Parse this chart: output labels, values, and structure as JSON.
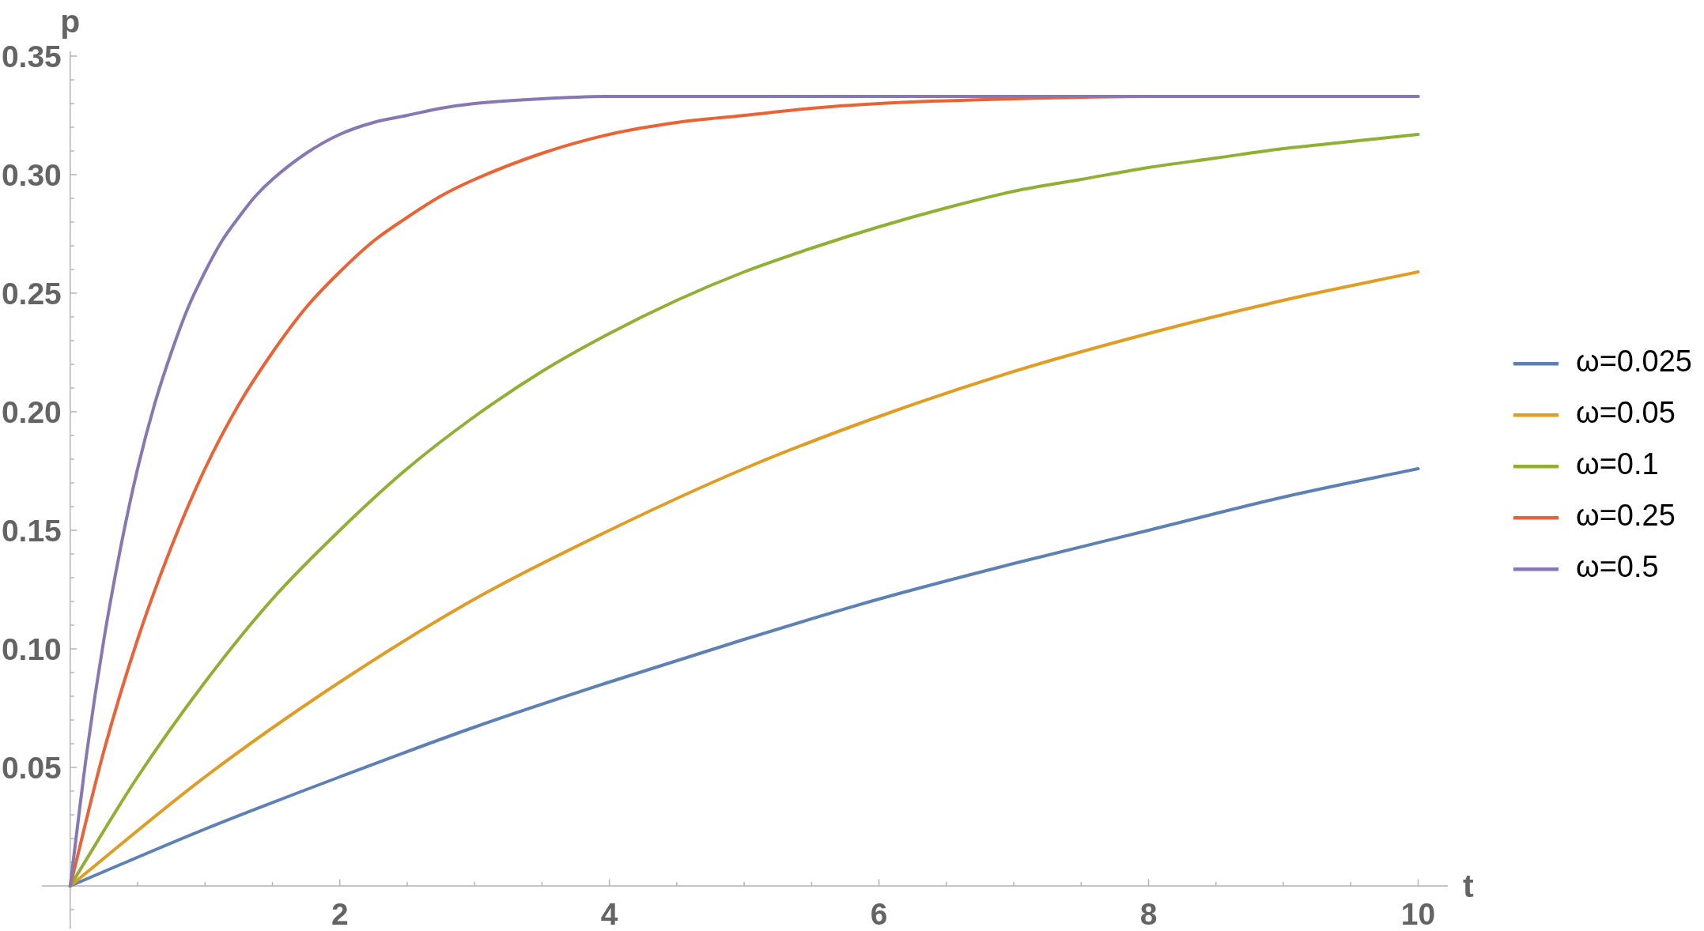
{
  "chart_data": {
    "type": "line",
    "xlabel": "t",
    "ylabel": "p",
    "series": [
      {
        "name": "ω=0.025",
        "color": "#5e81b5",
        "x": [
          0,
          1,
          2,
          3,
          4,
          5,
          6,
          7,
          8,
          9,
          10
        ],
        "values": [
          0,
          0.024,
          0.046,
          0.067,
          0.086,
          0.104,
          0.121,
          0.136,
          0.15,
          0.164,
          0.176
        ]
      },
      {
        "name": "ω=0.05",
        "color": "#e19c24",
        "x": [
          0,
          1,
          2,
          3,
          4,
          5,
          6,
          7,
          8,
          9,
          10
        ],
        "values": [
          0,
          0.046,
          0.086,
          0.121,
          0.15,
          0.176,
          0.198,
          0.217,
          0.233,
          0.247,
          0.259
        ]
      },
      {
        "name": "ω=0.1",
        "color": "#8fb032",
        "x": [
          0,
          0.5,
          1,
          1.5,
          2,
          2.5,
          3,
          3.5,
          4,
          4.5,
          5,
          5.5,
          6,
          6.5,
          7,
          7.5,
          8,
          8.5,
          9,
          9.5,
          10
        ],
        "values": [
          0,
          0.046,
          0.086,
          0.121,
          0.15,
          0.176,
          0.198,
          0.217,
          0.233,
          0.247,
          0.259,
          0.269,
          0.278,
          0.286,
          0.293,
          0.298,
          0.303,
          0.307,
          0.311,
          0.314,
          0.317
        ]
      },
      {
        "name": "ω=0.25",
        "color": "#eb6235",
        "x": [
          0,
          0.25,
          0.5,
          0.75,
          1,
          1.25,
          1.5,
          1.75,
          2,
          2.25,
          2.5,
          2.75,
          3,
          3.5,
          4,
          4.5,
          5,
          5.5,
          6,
          7,
          8,
          9,
          10
        ],
        "values": [
          0,
          0.057,
          0.104,
          0.143,
          0.176,
          0.203,
          0.225,
          0.244,
          0.259,
          0.272,
          0.282,
          0.291,
          0.298,
          0.309,
          0.317,
          0.322,
          0.325,
          0.328,
          0.33,
          0.332,
          0.333,
          0.333,
          0.333
        ]
      },
      {
        "name": "ω=0.5",
        "color": "#8778b3",
        "x": [
          0,
          0.125,
          0.25,
          0.375,
          0.5,
          0.625,
          0.75,
          0.875,
          1,
          1.125,
          1.25,
          1.375,
          1.5,
          1.75,
          2,
          2.25,
          2.5,
          2.75,
          3,
          3.5,
          4,
          5,
          6,
          7,
          8,
          9,
          10
        ],
        "values": [
          0,
          0.057,
          0.104,
          0.143,
          0.176,
          0.203,
          0.225,
          0.244,
          0.259,
          0.272,
          0.282,
          0.291,
          0.298,
          0.309,
          0.317,
          0.322,
          0.325,
          0.328,
          0.33,
          0.332,
          0.333,
          0.333,
          0.333,
          0.333,
          0.333,
          0.333,
          0.333
        ]
      }
    ],
    "xlim": [
      -0.21,
      10.22
    ],
    "ylim": [
      -0.018,
      0.352
    ],
    "xticks": [
      {
        "value": 0.5,
        "label": null
      },
      {
        "value": 1,
        "label": null
      },
      {
        "value": 1.5,
        "label": null
      },
      2,
      {
        "value": 2.5,
        "label": null
      },
      {
        "value": 3,
        "label": null
      },
      {
        "value": 3.5,
        "label": null
      },
      4,
      {
        "value": 4.5,
        "label": null
      },
      {
        "value": 5,
        "label": null
      },
      {
        "value": 5.5,
        "label": null
      },
      6,
      {
        "value": 6.5,
        "label": null
      },
      {
        "value": 7,
        "label": null
      },
      {
        "value": 7.5,
        "label": null
      },
      8,
      {
        "value": 8.5,
        "label": null
      },
      {
        "value": 9,
        "label": null
      },
      {
        "value": 9.5,
        "label": null
      },
      10
    ],
    "yticks": [
      {
        "value": -0.01,
        "label": null
      },
      {
        "value": 0.01,
        "label": null
      },
      {
        "value": 0.02,
        "label": null
      },
      {
        "value": 0.03,
        "label": null
      },
      {
        "value": 0.04,
        "label": null
      },
      0.05,
      {
        "value": 0.06,
        "label": null
      },
      {
        "value": 0.07,
        "label": null
      },
      {
        "value": 0.08,
        "label": null
      },
      {
        "value": 0.09,
        "label": null
      },
      {
        "value": 0.1,
        "label": "0.10"
      },
      {
        "value": 0.11,
        "label": null
      },
      {
        "value": 0.12,
        "label": null
      },
      {
        "value": 0.13,
        "label": null
      },
      {
        "value": 0.14,
        "label": null
      },
      0.15,
      {
        "value": 0.16,
        "label": null
      },
      {
        "value": 0.17,
        "label": null
      },
      {
        "value": 0.18,
        "label": null
      },
      {
        "value": 0.19,
        "label": null
      },
      {
        "value": 0.2,
        "label": "0.20"
      },
      {
        "value": 0.21,
        "label": null
      },
      {
        "value": 0.22,
        "label": null
      },
      {
        "value": 0.23,
        "label": null
      },
      {
        "value": 0.24,
        "label": null
      },
      0.25,
      {
        "value": 0.26,
        "label": null
      },
      {
        "value": 0.27,
        "label": null
      },
      {
        "value": 0.28,
        "label": null
      },
      {
        "value": 0.29,
        "label": null
      },
      {
        "value": 0.3,
        "label": "0.30"
      },
      {
        "value": 0.31,
        "label": null
      },
      {
        "value": 0.32,
        "label": null
      },
      {
        "value": 0.33,
        "label": null
      },
      {
        "value": 0.34,
        "label": null
      },
      0.35
    ],
    "legend": "right"
  }
}
